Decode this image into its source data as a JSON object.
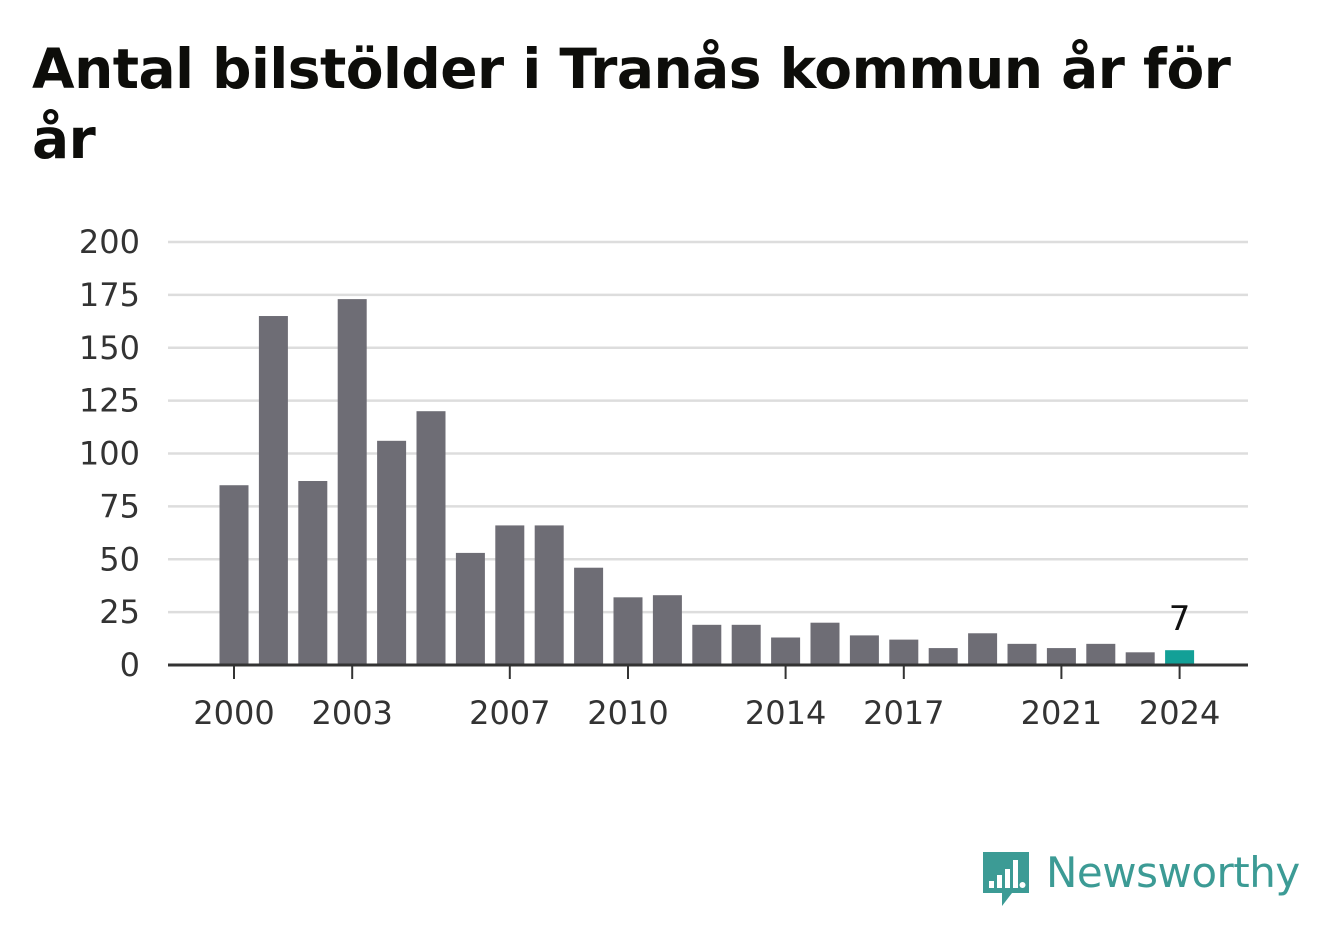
{
  "title": "Antal bilstölder i Tranås kommun år för år",
  "brand": {
    "name": "Newsworthy",
    "color": "#3c9b95"
  },
  "colors": {
    "bar": "#6e6d75",
    "highlight": "#13a097",
    "grid": "#dddddd",
    "axis": "#333333"
  },
  "chart_data": {
    "type": "bar",
    "title": "Antal bilstölder i Tranås kommun år för år",
    "xlabel": "",
    "ylabel": "",
    "ylim": [
      0,
      200
    ],
    "yticks": [
      0,
      25,
      50,
      75,
      100,
      125,
      150,
      175,
      200
    ],
    "xtick_labels": [
      "2000",
      "2003",
      "2007",
      "2010",
      "2014",
      "2017",
      "2021",
      "2024"
    ],
    "grid": true,
    "categories": [
      "2000",
      "2001",
      "2002",
      "2003",
      "2004",
      "2005",
      "2006",
      "2007",
      "2008",
      "2009",
      "2010",
      "2011",
      "2012",
      "2013",
      "2014",
      "2015",
      "2016",
      "2017",
      "2018",
      "2019",
      "2020",
      "2021",
      "2022",
      "2023",
      "2024"
    ],
    "values": [
      85,
      165,
      87,
      173,
      106,
      120,
      53,
      66,
      66,
      46,
      32,
      33,
      19,
      19,
      13,
      20,
      14,
      12,
      8,
      15,
      10,
      8,
      10,
      6,
      7
    ],
    "highlight_category": "2024",
    "annotations": [
      {
        "category": "2024",
        "text": "7"
      }
    ]
  }
}
